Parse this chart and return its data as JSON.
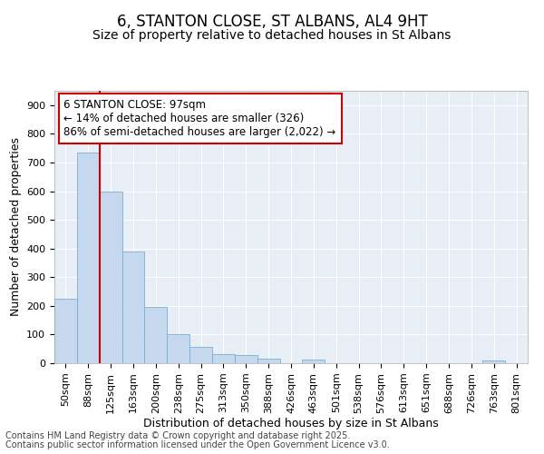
{
  "title_line1": "6, STANTON CLOSE, ST ALBANS, AL4 9HT",
  "title_line2": "Size of property relative to detached houses in St Albans",
  "xlabel": "Distribution of detached houses by size in St Albans",
  "ylabel": "Number of detached properties",
  "bar_labels": [
    "50sqm",
    "88sqm",
    "125sqm",
    "163sqm",
    "200sqm",
    "238sqm",
    "275sqm",
    "313sqm",
    "350sqm",
    "388sqm",
    "426sqm",
    "463sqm",
    "501sqm",
    "538sqm",
    "576sqm",
    "613sqm",
    "651sqm",
    "688sqm",
    "726sqm",
    "763sqm",
    "801sqm"
  ],
  "bar_values": [
    225,
    735,
    600,
    390,
    195,
    100,
    57,
    32,
    28,
    17,
    0,
    12,
    0,
    0,
    0,
    0,
    0,
    0,
    0,
    8,
    0
  ],
  "bar_color": "#c5d8ed",
  "bar_edge_color": "#7aafd4",
  "vline_color": "#cc0000",
  "annotation_line1": "6 STANTON CLOSE: 97sqm",
  "annotation_line2": "← 14% of detached houses are smaller (326)",
  "annotation_line3": "86% of semi-detached houses are larger (2,022) →",
  "annotation_box_color": "#cc0000",
  "ylim": [
    0,
    950
  ],
  "yticks": [
    0,
    100,
    200,
    300,
    400,
    500,
    600,
    700,
    800,
    900
  ],
  "bg_color": "#e8eef5",
  "footer_line1": "Contains HM Land Registry data © Crown copyright and database right 2025.",
  "footer_line2": "Contains public sector information licensed under the Open Government Licence v3.0.",
  "title_fontsize": 12,
  "subtitle_fontsize": 10,
  "axis_label_fontsize": 9,
  "tick_fontsize": 8,
  "annotation_fontsize": 8.5,
  "footer_fontsize": 7
}
